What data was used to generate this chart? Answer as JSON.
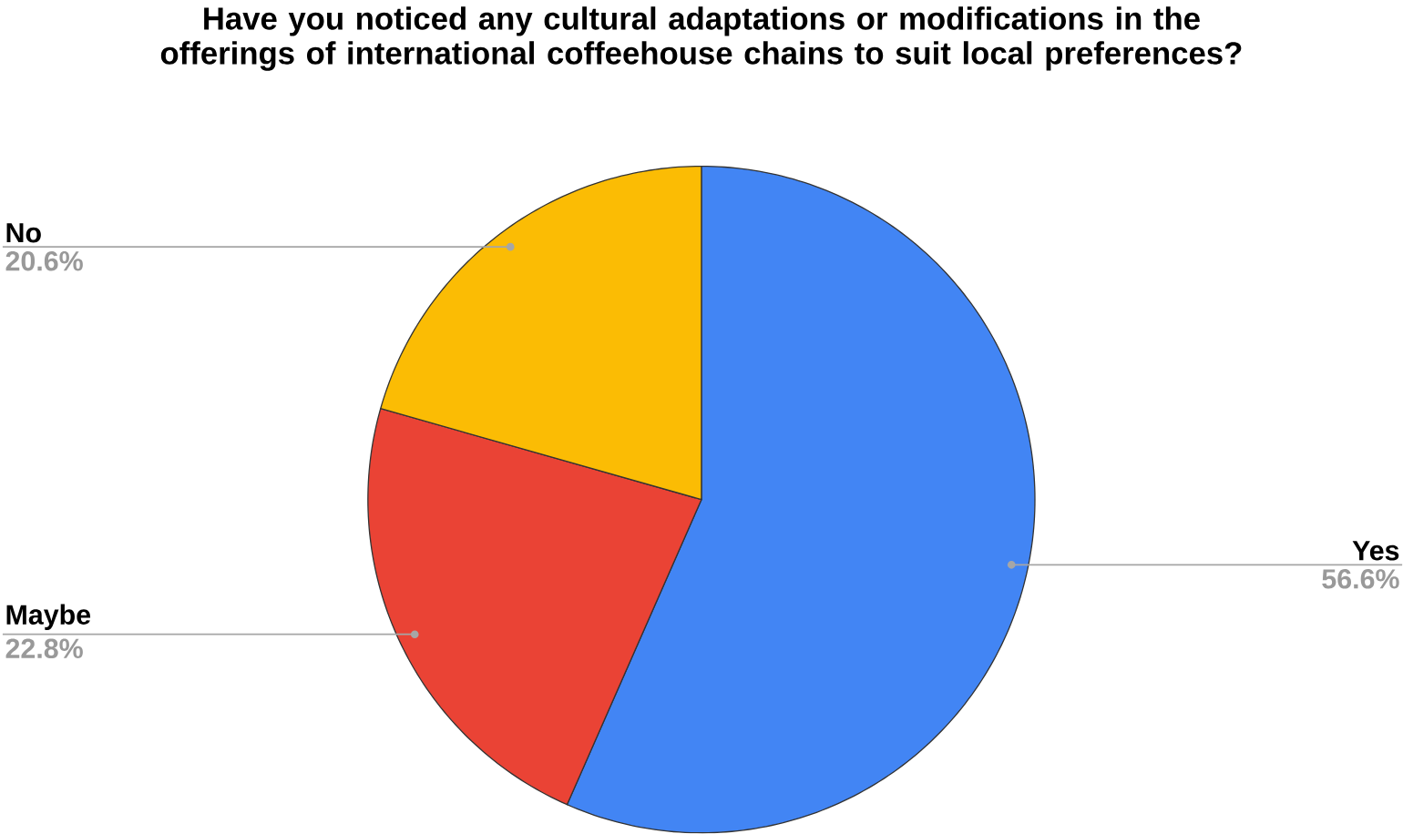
{
  "chart_data": {
    "type": "pie",
    "title": "Have you noticed any cultural adaptations or modifications in the offerings of international coffeehouse chains to suit local preferences?",
    "categories": [
      "Yes",
      "Maybe",
      "No"
    ],
    "values": [
      56.6,
      22.8,
      20.6
    ],
    "value_labels": [
      "56.6%",
      "22.8%",
      "20.6%"
    ],
    "colors": [
      "#4285f4",
      "#ea4335",
      "#fbbc04"
    ]
  }
}
